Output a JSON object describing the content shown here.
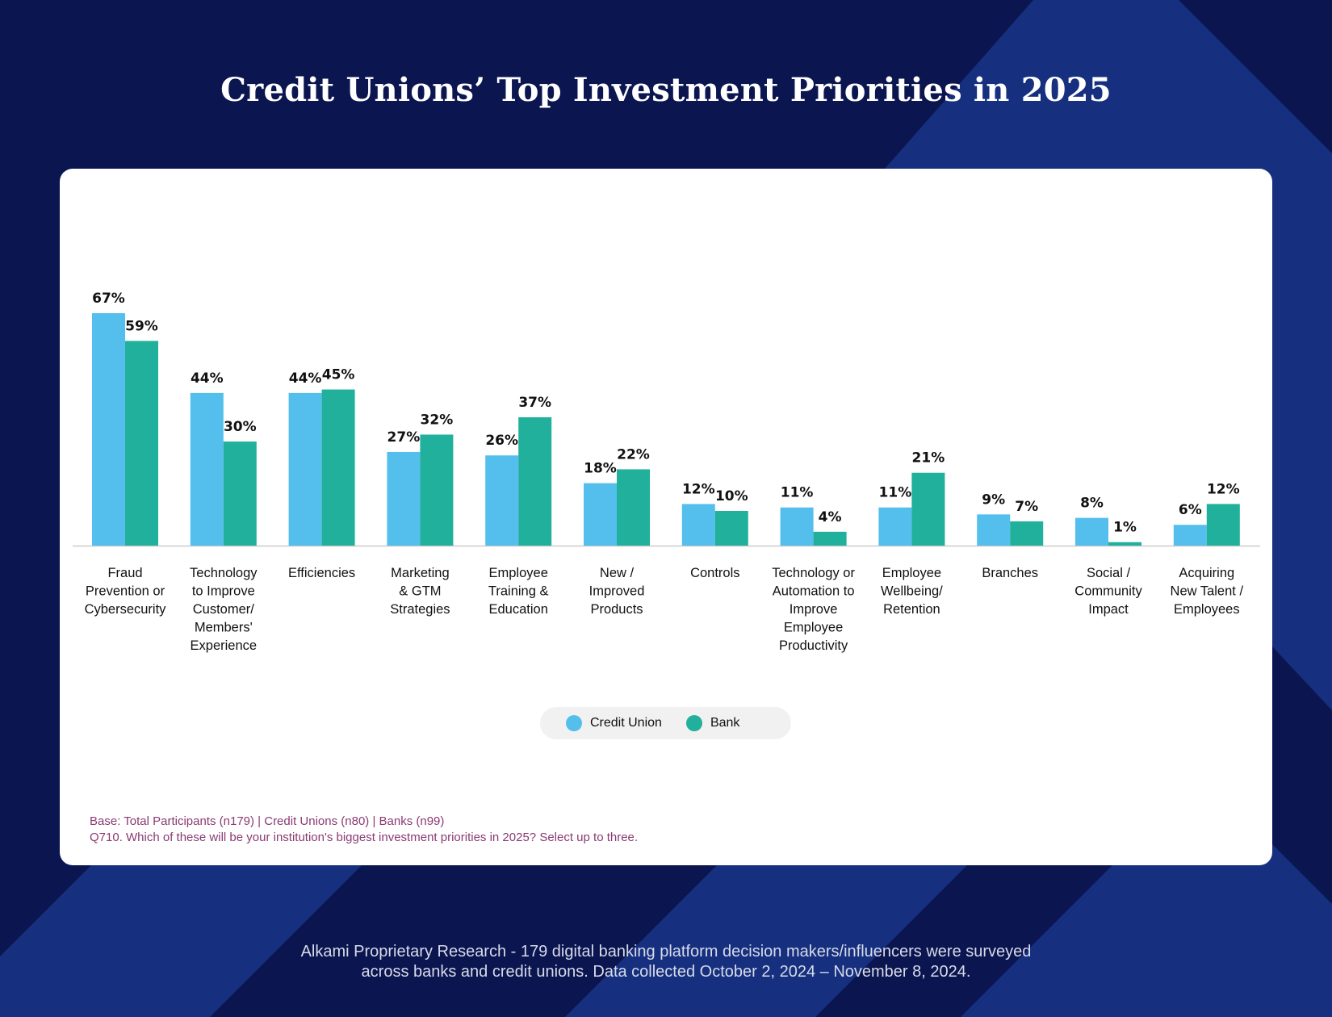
{
  "page": {
    "title": "Credit Unions’ Top Investment Priorities in 2025",
    "footer_line1": "Alkami Proprietary Research - 179 digital banking platform decision makers/influencers were surveyed",
    "footer_line2": "across banks and credit unions. Data collected October 2, 2024 – November 8, 2024."
  },
  "notes": {
    "base": "Base: Total Participants (n179) | Credit Unions (n80) | Banks (n99)",
    "question": "Q710. Which of these will be your institution's biggest investment priorities in 2025? Select up to three."
  },
  "colors": {
    "credit_union": "#54bfec",
    "bank": "#20b09b",
    "background": "#0b1550",
    "background_accent": "#162d80",
    "axis": "#cccccc"
  },
  "legend": {
    "items": [
      {
        "label": "Credit Union",
        "color": "#54bfec"
      },
      {
        "label": "Bank",
        "color": "#20b09b"
      }
    ]
  },
  "chart_data": {
    "type": "bar",
    "categories": [
      "Fraud Prevention or Cybersecurity",
      "Technology to Improve Customer/ Members' Experience",
      "Efficiencies",
      "Marketing & GTM Strategies",
      "Employee Training & Education",
      "New / Improved Products",
      "Controls",
      "Technology or Automation to Improve Employee Productivity",
      "Employee Wellbeing/ Retention",
      "Branches",
      "Social / Community Impact",
      "Acquiring New Talent / Employees"
    ],
    "category_lines": [
      [
        "Fraud",
        "Prevention or",
        "Cybersecurity"
      ],
      [
        "Technology",
        "to Improve",
        "Customer/",
        "Members'",
        "Experience"
      ],
      [
        "Efficiencies"
      ],
      [
        "Marketing",
        "& GTM",
        "Strategies"
      ],
      [
        "Employee",
        "Training &",
        "Education"
      ],
      [
        "New /",
        "Improved",
        "Products"
      ],
      [
        "Controls"
      ],
      [
        "Technology or",
        "Automation to",
        "Improve",
        "Employee",
        "Productivity"
      ],
      [
        "Employee",
        "Wellbeing/",
        "Retention"
      ],
      [
        "Branches"
      ],
      [
        "Social /",
        "Community",
        "Impact"
      ],
      [
        "Acquiring",
        "New Talent /",
        "Employees"
      ]
    ],
    "series": [
      {
        "name": "Credit Union",
        "values": [
          67,
          44,
          44,
          27,
          26,
          18,
          12,
          11,
          11,
          9,
          8,
          6
        ]
      },
      {
        "name": "Bank",
        "values": [
          59,
          30,
          45,
          32,
          37,
          22,
          10,
          4,
          21,
          7,
          1,
          12
        ]
      }
    ],
    "value_suffix": "%",
    "ylim": [
      0,
      67
    ],
    "grid": false,
    "legend_position": "bottom-center",
    "title": "",
    "xlabel": "",
    "ylabel": ""
  }
}
